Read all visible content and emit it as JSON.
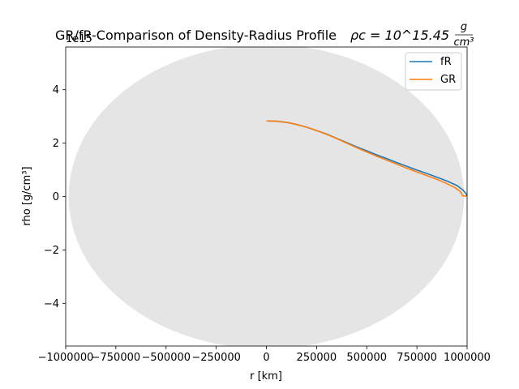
{
  "chart_data": {
    "type": "line",
    "title": "GR/fR-Comparison of Density-Radius Profile",
    "title_math": "ρc = 10^15.45",
    "title_unit_num": "g",
    "title_unit_den": "cm³",
    "xlabel": "r [km]",
    "ylabel": "rho [g/cm³]",
    "offset_text": "1e15",
    "xlim": [
      -1000000,
      1000000
    ],
    "ylim": [
      -5.6,
      5.6
    ],
    "xticks": [
      -1000000,
      -750000,
      -500000,
      -250000,
      0,
      250000,
      500000,
      750000,
      1000000
    ],
    "xtick_labels": [
      "−1000000",
      "−750000",
      "−500000",
      "−250000",
      "0",
      "250000",
      "500000",
      "750000",
      "1000000"
    ],
    "yticks": [
      -4,
      -2,
      0,
      2,
      4
    ],
    "ytick_labels": [
      "−4",
      "−2",
      "0",
      "2",
      "4"
    ],
    "grid": false,
    "legend_position": "top-right",
    "background_disc": {
      "center": [
        0,
        0
      ],
      "x_radius": 985000,
      "y_radius": 5.7,
      "color": "#e5e5e5"
    },
    "series": [
      {
        "name": "fR",
        "color": "#1f77b4",
        "x": [
          0,
          50000,
          100000,
          150000,
          200000,
          250000,
          300000,
          350000,
          400000,
          450000,
          500000,
          550000,
          600000,
          650000,
          700000,
          750000,
          800000,
          850000,
          900000,
          950000,
          980000,
          995000,
          1000000
        ],
        "y": [
          2.83,
          2.82,
          2.78,
          2.7,
          2.6,
          2.47,
          2.34,
          2.18,
          2.02,
          1.86,
          1.71,
          1.56,
          1.42,
          1.27,
          1.13,
          0.99,
          0.86,
          0.72,
          0.58,
          0.41,
          0.24,
          0.1,
          0.02
        ]
      },
      {
        "name": "GR",
        "color": "#ff7f0e",
        "x": [
          0,
          50000,
          100000,
          150000,
          200000,
          250000,
          300000,
          350000,
          400000,
          450000,
          500000,
          550000,
          600000,
          650000,
          700000,
          750000,
          800000,
          850000,
          900000,
          940000,
          965000,
          980000,
          1000000
        ],
        "y": [
          2.83,
          2.82,
          2.78,
          2.7,
          2.6,
          2.47,
          2.33,
          2.17,
          2.0,
          1.83,
          1.67,
          1.51,
          1.36,
          1.21,
          1.06,
          0.92,
          0.78,
          0.64,
          0.48,
          0.33,
          0.2,
          0.02,
          0.02
        ]
      }
    ]
  }
}
